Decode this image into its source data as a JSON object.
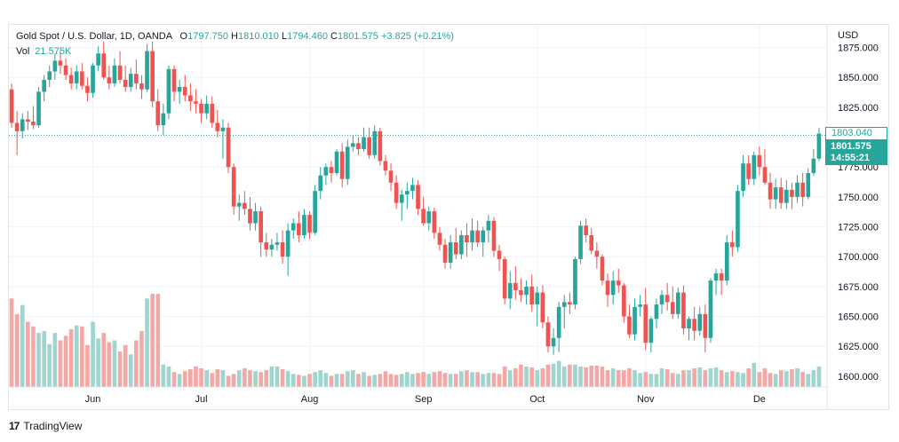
{
  "legend": {
    "symbol": "Gold Spot / U.S. Dollar, 1D, OANDA",
    "open_label": "O",
    "open_value": "1797.750",
    "high_label": "H",
    "high_value": "1810.010",
    "low_label": "L",
    "low_value": "1794.460",
    "close_label": "C",
    "close_value": "1801.575",
    "change": "+3.825 (+0.21%)",
    "vol_label": "Vol",
    "vol_value": "21.575K"
  },
  "price_scale": {
    "currency": "USD",
    "prev_price_tag": "1803.040",
    "current_price_tag": "1801.575",
    "countdown": "14:55:21"
  },
  "footer": {
    "logo_glyph": "17",
    "brand": "TradingView"
  },
  "colors": {
    "up": "#26a69a",
    "down": "#ef5350",
    "vol_up": "#9ed5cf",
    "vol_down": "#f4a8a6",
    "grid": "#f0f3fa"
  },
  "chart_data": {
    "type": "candlestick",
    "y_ticks": [
      "1875.000",
      "1850.000",
      "1825.000",
      "1800.000",
      "1775.000",
      "1750.000",
      "1725.000",
      "1700.000",
      "1675.000",
      "1650.000",
      "1625.000",
      "1600.000"
    ],
    "x_ticks": [
      {
        "label": "Jun",
        "index": 15
      },
      {
        "label": "Jul",
        "index": 35
      },
      {
        "label": "Aug",
        "index": 55
      },
      {
        "label": "Sep",
        "index": 76
      },
      {
        "label": "Oct",
        "index": 97
      },
      {
        "label": "Nov",
        "index": 117
      },
      {
        "label": "De",
        "index": 138
      }
    ],
    "ylim": [
      1591,
      1894
    ],
    "last_price": 1801.575,
    "volume_ylim": [
      0,
      100
    ],
    "candles": [
      [
        1840,
        1845,
        1808,
        1812,
        95
      ],
      [
        1812,
        1822,
        1785,
        1805,
        78
      ],
      [
        1805,
        1820,
        1799,
        1815,
        88
      ],
      [
        1815,
        1822,
        1806,
        1813,
        70
      ],
      [
        1813,
        1826,
        1807,
        1810,
        65
      ],
      [
        1810,
        1842,
        1808,
        1838,
        58
      ],
      [
        1838,
        1852,
        1830,
        1848,
        60
      ],
      [
        1848,
        1860,
        1842,
        1855,
        46
      ],
      [
        1855,
        1870,
        1848,
        1864,
        58
      ],
      [
        1864,
        1872,
        1853,
        1860,
        50
      ],
      [
        1860,
        1866,
        1848,
        1852,
        55
      ],
      [
        1852,
        1858,
        1840,
        1845,
        62
      ],
      [
        1845,
        1860,
        1840,
        1855,
        66
      ],
      [
        1855,
        1862,
        1840,
        1843,
        65
      ],
      [
        1843,
        1850,
        1830,
        1837,
        45
      ],
      [
        1837,
        1862,
        1833,
        1860,
        70
      ],
      [
        1860,
        1876,
        1855,
        1870,
        52
      ],
      [
        1870,
        1880,
        1848,
        1850,
        58
      ],
      [
        1850,
        1860,
        1840,
        1845,
        48
      ],
      [
        1845,
        1866,
        1842,
        1860,
        50
      ],
      [
        1860,
        1872,
        1845,
        1848,
        38
      ],
      [
        1848,
        1860,
        1838,
        1842,
        45
      ],
      [
        1842,
        1858,
        1838,
        1853,
        35
      ],
      [
        1853,
        1865,
        1840,
        1845,
        50
      ],
      [
        1845,
        1852,
        1832,
        1840,
        60
      ],
      [
        1840,
        1878,
        1838,
        1872,
        95
      ],
      [
        1872,
        1880,
        1825,
        1830,
        136
      ],
      [
        1830,
        1840,
        1805,
        1810,
        110
      ],
      [
        1810,
        1828,
        1802,
        1820,
        24
      ],
      [
        1820,
        1860,
        1815,
        1857,
        22
      ],
      [
        1857,
        1860,
        1830,
        1838,
        16
      ],
      [
        1838,
        1848,
        1828,
        1842,
        14
      ],
      [
        1842,
        1852,
        1830,
        1835,
        17
      ],
      [
        1835,
        1845,
        1822,
        1830,
        19
      ],
      [
        1830,
        1840,
        1820,
        1828,
        22
      ],
      [
        1828,
        1832,
        1812,
        1820,
        20
      ],
      [
        1820,
        1835,
        1815,
        1828,
        18
      ],
      [
        1828,
        1834,
        1808,
        1812,
        15
      ],
      [
        1812,
        1823,
        1800,
        1805,
        19
      ],
      [
        1805,
        1815,
        1782,
        1808,
        18
      ],
      [
        1808,
        1812,
        1770,
        1775,
        12
      ],
      [
        1775,
        1778,
        1735,
        1742,
        14
      ],
      [
        1742,
        1752,
        1730,
        1745,
        18
      ],
      [
        1745,
        1755,
        1735,
        1740,
        20
      ],
      [
        1740,
        1750,
        1722,
        1728,
        18
      ],
      [
        1728,
        1745,
        1722,
        1738,
        17
      ],
      [
        1738,
        1742,
        1700,
        1712,
        16
      ],
      [
        1712,
        1720,
        1700,
        1706,
        18
      ],
      [
        1706,
        1715,
        1700,
        1710,
        22
      ],
      [
        1710,
        1720,
        1705,
        1712,
        22
      ],
      [
        1712,
        1722,
        1694,
        1700,
        19
      ],
      [
        1700,
        1728,
        1684,
        1722,
        17
      ],
      [
        1722,
        1732,
        1715,
        1728,
        14
      ],
      [
        1728,
        1738,
        1712,
        1718,
        13
      ],
      [
        1718,
        1740,
        1715,
        1735,
        12
      ],
      [
        1735,
        1738,
        1715,
        1720,
        14
      ],
      [
        1720,
        1760,
        1718,
        1755,
        16
      ],
      [
        1755,
        1775,
        1748,
        1768,
        18
      ],
      [
        1768,
        1778,
        1760,
        1775,
        15
      ],
      [
        1775,
        1780,
        1762,
        1770,
        12
      ],
      [
        1770,
        1790,
        1768,
        1788,
        14
      ],
      [
        1788,
        1795,
        1758,
        1765,
        14
      ],
      [
        1765,
        1798,
        1760,
        1792,
        17
      ],
      [
        1792,
        1802,
        1788,
        1795,
        18
      ],
      [
        1795,
        1800,
        1785,
        1790,
        14
      ],
      [
        1790,
        1808,
        1788,
        1800,
        16
      ],
      [
        1800,
        1808,
        1782,
        1785,
        12
      ],
      [
        1785,
        1810,
        1782,
        1805,
        13
      ],
      [
        1805,
        1808,
        1776,
        1780,
        14
      ],
      [
        1780,
        1785,
        1768,
        1772,
        17
      ],
      [
        1772,
        1778,
        1755,
        1762,
        14
      ],
      [
        1762,
        1768,
        1740,
        1745,
        13
      ],
      [
        1745,
        1756,
        1730,
        1752,
        14
      ],
      [
        1752,
        1762,
        1740,
        1755,
        16
      ],
      [
        1755,
        1766,
        1748,
        1760,
        14
      ],
      [
        1760,
        1764,
        1735,
        1740,
        15
      ],
      [
        1740,
        1750,
        1726,
        1728,
        16
      ],
      [
        1728,
        1742,
        1722,
        1738,
        14
      ],
      [
        1738,
        1741,
        1715,
        1720,
        16
      ],
      [
        1720,
        1725,
        1705,
        1710,
        17
      ],
      [
        1710,
        1715,
        1690,
        1695,
        15
      ],
      [
        1695,
        1718,
        1690,
        1712,
        14
      ],
      [
        1712,
        1724,
        1698,
        1702,
        14
      ],
      [
        1702,
        1722,
        1698,
        1718,
        17
      ],
      [
        1718,
        1728,
        1700,
        1712,
        18
      ],
      [
        1712,
        1732,
        1705,
        1722,
        16
      ],
      [
        1722,
        1730,
        1708,
        1712,
        16
      ],
      [
        1712,
        1725,
        1700,
        1722,
        14
      ],
      [
        1722,
        1735,
        1712,
        1730,
        15
      ],
      [
        1730,
        1733,
        1700,
        1705,
        15
      ],
      [
        1705,
        1710,
        1688,
        1698,
        14
      ],
      [
        1698,
        1700,
        1660,
        1665,
        22
      ],
      [
        1665,
        1688,
        1656,
        1678,
        18
      ],
      [
        1678,
        1692,
        1664,
        1672,
        20
      ],
      [
        1672,
        1682,
        1662,
        1668,
        24
      ],
      [
        1668,
        1680,
        1660,
        1675,
        22
      ],
      [
        1675,
        1685,
        1654,
        1660,
        21
      ],
      [
        1660,
        1675,
        1642,
        1670,
        18
      ],
      [
        1670,
        1676,
        1640,
        1645,
        20
      ],
      [
        1645,
        1650,
        1620,
        1625,
        24
      ],
      [
        1625,
        1640,
        1618,
        1632,
        25
      ],
      [
        1632,
        1662,
        1620,
        1658,
        28
      ],
      [
        1658,
        1668,
        1640,
        1662,
        22
      ],
      [
        1662,
        1670,
        1652,
        1660,
        24
      ],
      [
        1660,
        1700,
        1656,
        1698,
        24
      ],
      [
        1698,
        1730,
        1694,
        1726,
        22
      ],
      [
        1726,
        1732,
        1712,
        1718,
        21
      ],
      [
        1718,
        1724,
        1702,
        1705,
        23
      ],
      [
        1705,
        1712,
        1690,
        1700,
        23
      ],
      [
        1700,
        1702,
        1676,
        1680,
        22
      ],
      [
        1680,
        1686,
        1658,
        1668,
        18
      ],
      [
        1668,
        1688,
        1660,
        1680,
        20
      ],
      [
        1680,
        1690,
        1670,
        1676,
        18
      ],
      [
        1676,
        1678,
        1645,
        1650,
        18
      ],
      [
        1650,
        1660,
        1632,
        1635,
        20
      ],
      [
        1635,
        1665,
        1630,
        1658,
        18
      ],
      [
        1658,
        1668,
        1650,
        1660,
        15
      ],
      [
        1660,
        1674,
        1622,
        1628,
        16
      ],
      [
        1628,
        1650,
        1620,
        1648,
        14
      ],
      [
        1648,
        1665,
        1640,
        1660,
        14
      ],
      [
        1660,
        1672,
        1652,
        1668,
        20
      ],
      [
        1668,
        1678,
        1655,
        1662,
        19
      ],
      [
        1662,
        1675,
        1648,
        1652,
        15
      ],
      [
        1652,
        1674,
        1648,
        1670,
        14
      ],
      [
        1670,
        1676,
        1635,
        1640,
        18
      ],
      [
        1640,
        1650,
        1630,
        1648,
        18
      ],
      [
        1648,
        1658,
        1630,
        1638,
        20
      ],
      [
        1638,
        1658,
        1634,
        1652,
        21
      ],
      [
        1652,
        1660,
        1620,
        1632,
        18
      ],
      [
        1632,
        1682,
        1628,
        1680,
        20
      ],
      [
        1680,
        1690,
        1668,
        1686,
        21
      ],
      [
        1686,
        1690,
        1668,
        1680,
        18
      ],
      [
        1680,
        1718,
        1676,
        1712,
        16
      ],
      [
        1712,
        1722,
        1700,
        1708,
        17
      ],
      [
        1708,
        1760,
        1704,
        1755,
        16
      ],
      [
        1755,
        1785,
        1750,
        1778,
        15
      ],
      [
        1778,
        1785,
        1760,
        1765,
        20
      ],
      [
        1765,
        1788,
        1760,
        1785,
        26
      ],
      [
        1785,
        1792,
        1768,
        1775,
        16
      ],
      [
        1775,
        1790,
        1760,
        1762,
        20
      ],
      [
        1762,
        1770,
        1740,
        1748,
        15
      ],
      [
        1748,
        1765,
        1740,
        1758,
        14
      ],
      [
        1758,
        1766,
        1740,
        1745,
        18
      ],
      [
        1745,
        1764,
        1740,
        1756,
        17
      ],
      [
        1756,
        1762,
        1740,
        1750,
        19
      ],
      [
        1750,
        1768,
        1745,
        1762,
        20
      ],
      [
        1762,
        1770,
        1742,
        1750,
        16
      ],
      [
        1750,
        1774,
        1748,
        1770,
        14
      ],
      [
        1770,
        1790,
        1768,
        1782,
        18
      ],
      [
        1782,
        1808,
        1780,
        1803,
        22
      ]
    ]
  }
}
